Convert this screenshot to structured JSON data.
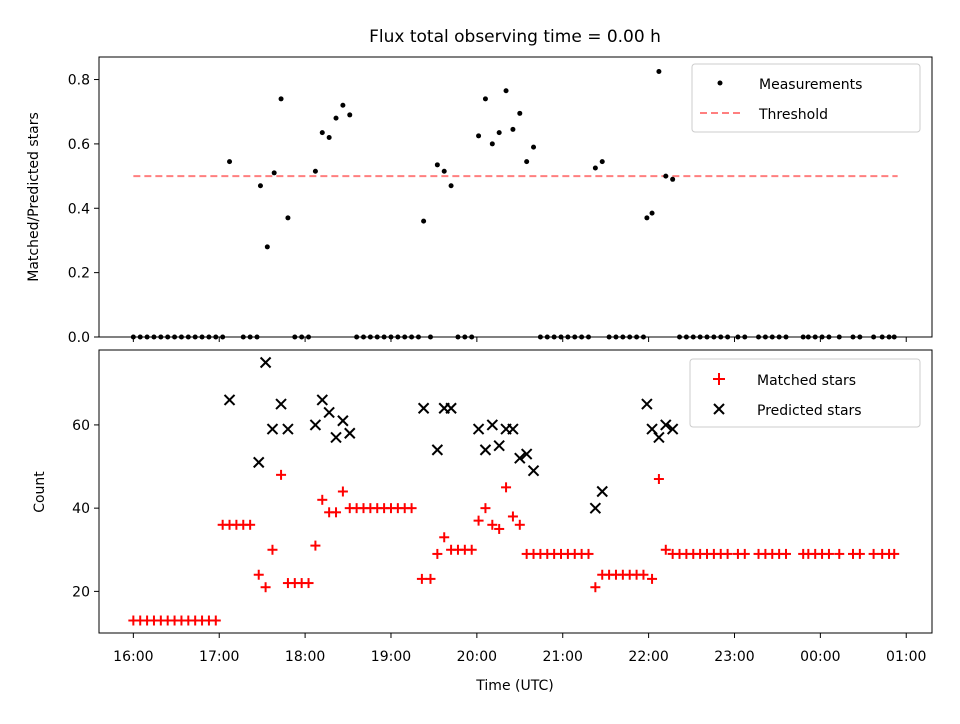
{
  "chart_data": [
    {
      "type": "scatter",
      "title": "Flux total observing time = 0.00 h",
      "xlabel": "",
      "ylabel": "Matched/Predicted stars",
      "xlim": [
        15.6,
        25.3
      ],
      "ylim": [
        0,
        0.87
      ],
      "yticks": [
        0.0,
        0.2,
        0.4,
        0.6,
        0.8
      ],
      "ytick_labels": [
        "0.0",
        "0.2",
        "0.4",
        "0.6",
        "0.8"
      ],
      "legend_position": "top-right",
      "threshold": {
        "name": "Threshold",
        "value": 0.5,
        "x_range": [
          16.0,
          24.9
        ],
        "color": "#ff7f7f"
      },
      "series": [
        {
          "name": "Measurements",
          "color": "#000000",
          "x": [
            16.0,
            16.08,
            16.16,
            16.24,
            16.32,
            16.4,
            16.48,
            16.56,
            16.64,
            16.72,
            16.8,
            16.88,
            16.96,
            17.04,
            17.12,
            17.28,
            17.36,
            17.44,
            17.48,
            17.56,
            17.64,
            17.72,
            17.8,
            17.88,
            17.96,
            18.04,
            18.12,
            18.2,
            18.28,
            18.36,
            18.44,
            18.52,
            18.6,
            18.68,
            18.76,
            18.84,
            18.92,
            19.0,
            19.08,
            19.16,
            19.24,
            19.32,
            19.38,
            19.46,
            19.54,
            19.62,
            19.7,
            19.78,
            19.86,
            19.94,
            20.02,
            20.1,
            20.18,
            20.26,
            20.34,
            20.42,
            20.5,
            20.58,
            20.66,
            20.74,
            20.82,
            20.9,
            20.98,
            21.06,
            21.14,
            21.22,
            21.3,
            21.38,
            21.46,
            21.54,
            21.62,
            21.7,
            21.78,
            21.86,
            21.94,
            21.98,
            22.04,
            22.12,
            22.2,
            22.28,
            22.36,
            22.44,
            22.52,
            22.6,
            22.68,
            22.76,
            22.84,
            22.92,
            23.04,
            23.12,
            23.28,
            23.36,
            23.44,
            23.52,
            23.6,
            23.8,
            23.86,
            23.94,
            24.02,
            24.1,
            24.22,
            24.38,
            24.46,
            24.62,
            24.72,
            24.8,
            24.86
          ],
          "y": [
            0.0,
            0.0,
            0.0,
            0.0,
            0.0,
            0.0,
            0.0,
            0.0,
            0.0,
            0.0,
            0.0,
            0.0,
            0.0,
            0.0,
            0.545,
            0.0,
            0.0,
            0.0,
            0.47,
            0.28,
            0.51,
            0.74,
            0.37,
            0.0,
            0.0,
            0.0,
            0.515,
            0.635,
            0.62,
            0.68,
            0.72,
            0.69,
            0.0,
            0.0,
            0.0,
            0.0,
            0.0,
            0.0,
            0.0,
            0.0,
            0.0,
            0.0,
            0.36,
            0.0,
            0.535,
            0.515,
            0.47,
            0.0,
            0.0,
            0.0,
            0.625,
            0.74,
            0.6,
            0.635,
            0.765,
            0.645,
            0.695,
            0.545,
            0.59,
            0.0,
            0.0,
            0.0,
            0.0,
            0.0,
            0.0,
            0.0,
            0.0,
            0.525,
            0.545,
            0.0,
            0.0,
            0.0,
            0.0,
            0.0,
            0.0,
            0.37,
            0.385,
            0.825,
            0.5,
            0.49,
            0.0,
            0.0,
            0.0,
            0.0,
            0.0,
            0.0,
            0.0,
            0.0,
            0.0,
            0.0,
            0.0,
            0.0,
            0.0,
            0.0,
            0.0,
            0.0,
            0.0,
            0.0,
            0.0,
            0.0,
            0.0,
            0.0,
            0.0,
            0.0,
            0.0,
            0.0,
            0.0
          ]
        }
      ]
    },
    {
      "type": "scatter",
      "title": "",
      "xlabel": "Time (UTC)",
      "ylabel": "Count",
      "xlim": [
        15.6,
        25.3
      ],
      "ylim": [
        10,
        78
      ],
      "xticks": [
        16,
        17,
        18,
        19,
        20,
        21,
        22,
        23,
        24,
        25
      ],
      "xtick_labels": [
        "16:00",
        "17:00",
        "18:00",
        "19:00",
        "20:00",
        "21:00",
        "22:00",
        "23:00",
        "00:00",
        "01:00"
      ],
      "yticks": [
        20,
        40,
        60
      ],
      "ytick_labels": [
        "20",
        "40",
        "60"
      ],
      "legend_position": "top-right",
      "series": [
        {
          "name": "Matched stars",
          "marker": "+",
          "color": "#ff0000",
          "x": [
            16.0,
            16.08,
            16.16,
            16.24,
            16.32,
            16.4,
            16.48,
            16.56,
            16.64,
            16.72,
            16.8,
            16.88,
            16.96,
            17.04,
            17.12,
            17.2,
            17.28,
            17.36,
            17.46,
            17.54,
            17.62,
            17.72,
            17.8,
            17.88,
            17.96,
            18.04,
            18.12,
            18.2,
            18.28,
            18.36,
            18.44,
            18.52,
            18.6,
            18.68,
            18.76,
            18.84,
            18.92,
            19.0,
            19.08,
            19.16,
            19.24,
            19.36,
            19.46,
            19.54,
            19.62,
            19.7,
            19.78,
            19.86,
            19.94,
            20.02,
            20.1,
            20.18,
            20.26,
            20.34,
            20.42,
            20.5,
            20.58,
            20.66,
            20.74,
            20.82,
            20.9,
            20.98,
            21.06,
            21.14,
            21.22,
            21.3,
            21.38,
            21.46,
            21.54,
            21.62,
            21.7,
            21.78,
            21.86,
            21.94,
            22.04,
            22.12,
            22.2,
            22.28,
            22.36,
            22.44,
            22.52,
            22.6,
            22.68,
            22.76,
            22.84,
            22.92,
            23.04,
            23.12,
            23.28,
            23.36,
            23.44,
            23.52,
            23.6,
            23.8,
            23.86,
            23.94,
            24.02,
            24.1,
            24.22,
            24.38,
            24.46,
            24.62,
            24.72,
            24.8,
            24.86
          ],
          "y": [
            13,
            13,
            13,
            13,
            13,
            13,
            13,
            13,
            13,
            13,
            13,
            13,
            13,
            36,
            36,
            36,
            36,
            36,
            24,
            21,
            30,
            48,
            22,
            22,
            22,
            22,
            31,
            42,
            39,
            39,
            44,
            40,
            40,
            40,
            40,
            40,
            40,
            40,
            40,
            40,
            40,
            23,
            23,
            29,
            33,
            30,
            30,
            30,
            30,
            37,
            40,
            36,
            35,
            45,
            38,
            36,
            29,
            29,
            29,
            29,
            29,
            29,
            29,
            29,
            29,
            29,
            21,
            24,
            24,
            24,
            24,
            24,
            24,
            24,
            23,
            47,
            30,
            29,
            29,
            29,
            29,
            29,
            29,
            29,
            29,
            29,
            29,
            29,
            29,
            29,
            29,
            29,
            29,
            29,
            29,
            29,
            29,
            29,
            29,
            29,
            29,
            29,
            29,
            29,
            29
          ]
        },
        {
          "name": "Predicted stars",
          "marker": "x",
          "color": "#000000",
          "x": [
            17.12,
            17.46,
            17.54,
            17.62,
            17.72,
            17.8,
            18.12,
            18.2,
            18.28,
            18.36,
            18.44,
            18.52,
            19.38,
            19.54,
            19.62,
            19.7,
            20.02,
            20.1,
            20.18,
            20.26,
            20.34,
            20.42,
            20.5,
            20.58,
            20.66,
            21.38,
            21.46,
            21.98,
            22.04,
            22.12,
            22.2,
            22.28
          ],
          "y": [
            66,
            51,
            75,
            59,
            65,
            59,
            60,
            66,
            63,
            57,
            61,
            58,
            64,
            54,
            64,
            64,
            59,
            54,
            60,
            55,
            59,
            59,
            52,
            53,
            49,
            40,
            44,
            65,
            59,
            57,
            60,
            59
          ]
        }
      ]
    }
  ]
}
